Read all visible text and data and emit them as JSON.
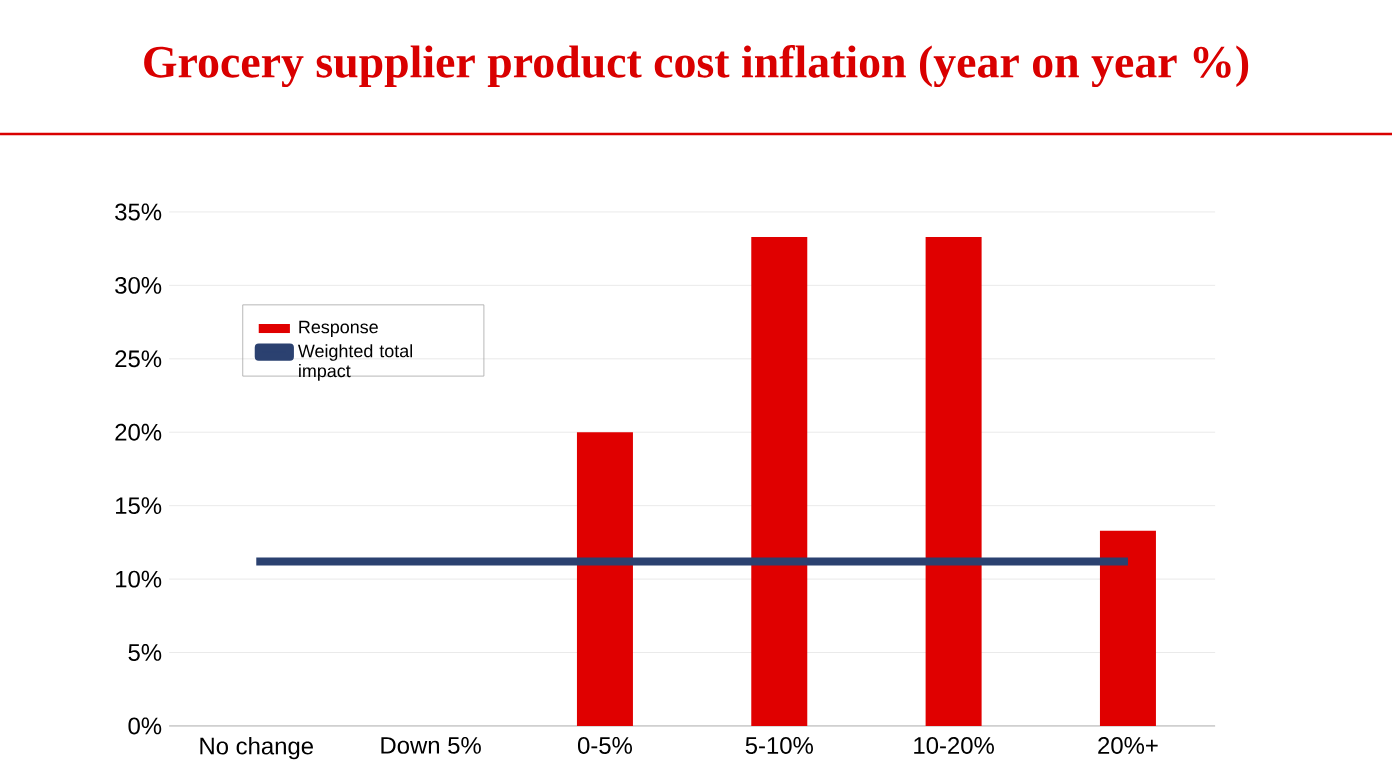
{
  "chart_data": {
    "type": "bar",
    "title": "Grocery supplier product cost inflation (year on year %)",
    "categories": [
      "No change",
      "Down 5%",
      "0-5%",
      "5-10%",
      "10-20%",
      "20%+"
    ],
    "series": [
      {
        "name": "Response",
        "color": "#e00000",
        "values": [
          0,
          0,
          20,
          33.3,
          33.3,
          13.3
        ]
      },
      {
        "name": "Weighted total impact",
        "type": "line",
        "color": "#2b4170",
        "values": [
          11.2,
          11.2,
          11.2,
          11.2,
          11.2,
          11.2
        ]
      }
    ],
    "ylim": [
      0,
      35
    ],
    "yticks": [
      {
        "value": 0,
        "label": "0%"
      },
      {
        "value": 5,
        "label": "5%"
      },
      {
        "value": 10,
        "label": "10%"
      },
      {
        "value": 15,
        "label": "15%"
      },
      {
        "value": 20,
        "label": "20%"
      },
      {
        "value": 25,
        "label": "25%"
      },
      {
        "value": 30,
        "label": "30%"
      },
      {
        "value": 35,
        "label": "35%"
      }
    ],
    "grid": "y",
    "legend": "top left",
    "marker": "none",
    "line_style": "solid"
  }
}
